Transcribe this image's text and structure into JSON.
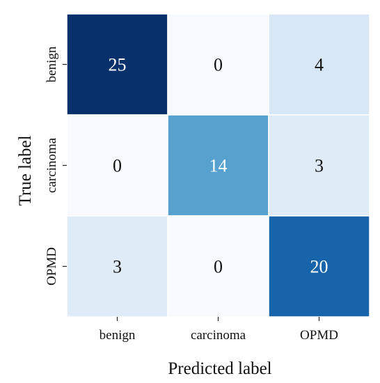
{
  "chart_data": {
    "type": "heatmap",
    "title": "",
    "xlabel": "Predicted label",
    "ylabel": "True label",
    "x_categories": [
      "benign",
      "carcinoma",
      "OPMD"
    ],
    "y_categories": [
      "benign",
      "carcinoma",
      "OPMD"
    ],
    "values": [
      [
        25,
        0,
        4
      ],
      [
        0,
        14,
        3
      ],
      [
        3,
        0,
        20
      ]
    ],
    "value_range": [
      0,
      25
    ],
    "colormap": "Blues",
    "grid": false,
    "legend": "none"
  }
}
